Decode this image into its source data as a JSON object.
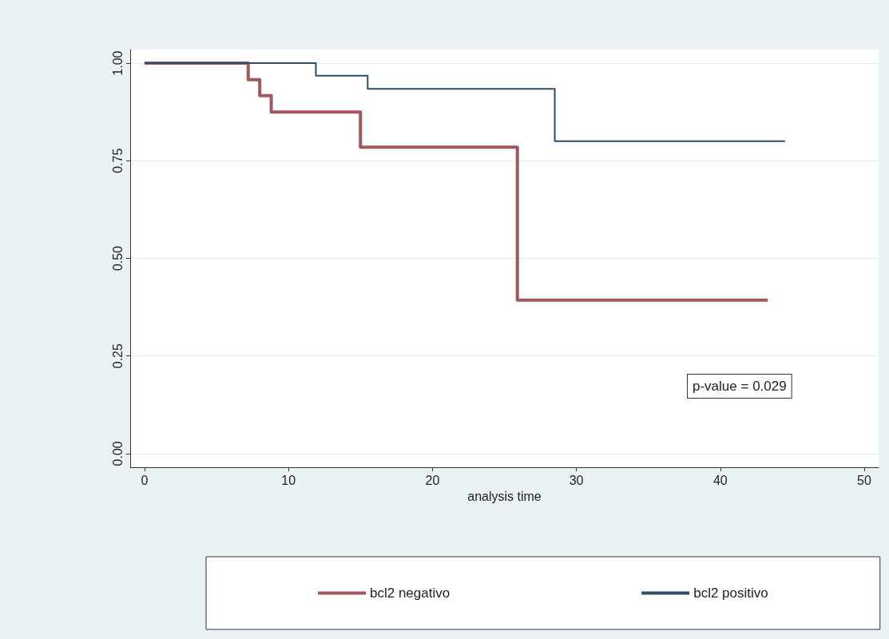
{
  "chart_data": {
    "type": "step",
    "xlabel": "analysis time",
    "annotations": [
      "p-value = 0.029"
    ],
    "series": [
      {
        "name": "bcl2 negativo",
        "color": "#a0585e",
        "x": [
          0,
          7.2,
          8.0,
          8.8,
          15.0,
          25.9,
          43.3
        ],
        "values": [
          1.0,
          0.958,
          0.917,
          0.875,
          0.785,
          0.393,
          0.393
        ]
      },
      {
        "name": "bcl2 positivo",
        "color": "#2f4d66",
        "x": [
          0,
          11.9,
          15.5,
          28.5,
          44.5
        ],
        "values": [
          1.0,
          0.968,
          0.934,
          0.8,
          0.8
        ]
      }
    ],
    "xlim": [
      -1,
      51
    ],
    "xticks": [
      0,
      10,
      20,
      30,
      40,
      50
    ],
    "ylim": [
      -0.035,
      1.035
    ],
    "yticks": [
      {
        "value": 0,
        "label": "0.00"
      },
      {
        "value": 0.25,
        "label": "0.25"
      },
      {
        "value": 0.5,
        "label": "0.50"
      },
      {
        "value": 0.75,
        "label": "0.75"
      },
      {
        "value": 1,
        "label": "1.00"
      }
    ],
    "grid": "y",
    "legend": "bottom",
    "marker": "none",
    "line_style": "solid"
  }
}
